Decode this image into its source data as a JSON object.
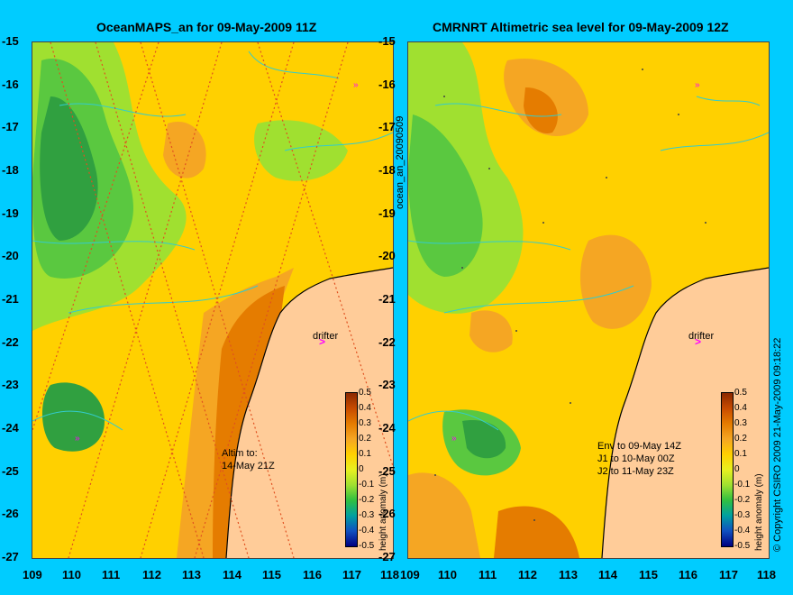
{
  "left_panel": {
    "title": "OceanMAPS_an for 09-May-2009 11Z",
    "drifter_label": "drifter",
    "note_line1": "Altim to:",
    "note_line2": "14-May 21Z"
  },
  "right_panel": {
    "title": "CMRNRT Altimetric sea level  for 09-May-2009 12Z",
    "drifter_label": "drifter",
    "note_line1": "Env to 09-May 14Z",
    "note_line2": "J1 to 10-May 00Z",
    "note_line3": "J2 to 11-May 23Z"
  },
  "side_label": "ocean_an_20090509",
  "colorbar": {
    "label": "height anomaly (m)",
    "ticks": [
      "0.5",
      "0.4",
      "0.3",
      "0.2",
      "0.1",
      "0",
      "-0.1",
      "-0.2",
      "-0.3",
      "-0.4",
      "-0.5"
    ],
    "colors": [
      "#8b2800",
      "#c84b00",
      "#e57c00",
      "#f5a623",
      "#ffd000",
      "#e8f020",
      "#a0e030",
      "#30c040",
      "#00a0a0",
      "#1050c0",
      "#000080"
    ]
  },
  "copyright": "© Copyright CSIRO 2009   21-May-2009 09:18:22",
  "y_ticks": [
    "-15",
    "-16",
    "-17",
    "-18",
    "-19",
    "-20",
    "-21",
    "-22",
    "-23",
    "-24",
    "-25",
    "-26",
    "-27"
  ],
  "x_ticks": [
    "109",
    "110",
    "111",
    "112",
    "113",
    "114",
    "115",
    "116",
    "117",
    "118"
  ],
  "colors": {
    "background": "#00ccff",
    "land": "#ffcc99",
    "contour": "#33cccc",
    "drifter": "#ff00ff"
  }
}
